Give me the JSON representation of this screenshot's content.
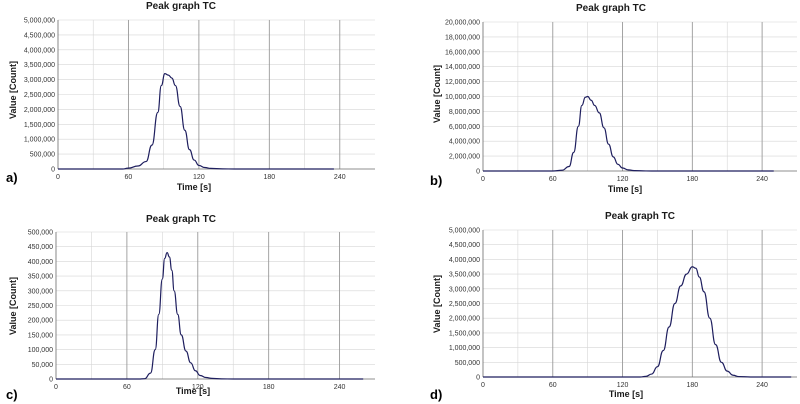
{
  "chart_data": [
    {
      "panel": "a)",
      "type": "line",
      "title": "Peak graph TC",
      "xlabel": "Time [s]",
      "ylabel": "Value [Count]",
      "xlim": [
        0,
        270
      ],
      "ylim": [
        0,
        5000000
      ],
      "xticks": [
        0,
        60,
        120,
        180,
        240
      ],
      "xtick_labels": [
        "0",
        "60",
        "120",
        "180",
        "240"
      ],
      "yticks": [
        0,
        500000,
        1000000,
        1500000,
        2000000,
        2500000,
        3000000,
        3500000,
        4000000,
        4500000,
        5000000
      ],
      "ytick_labels": [
        "0",
        "500,000",
        "1,000,000",
        "1,500,000",
        "2,000,000",
        "2,500,000",
        "3,000,000",
        "3,500,000",
        "4,000,000",
        "4,500,000",
        "5,000,000"
      ],
      "grid": true,
      "series": [
        {
          "x": [
            0,
            55,
            60,
            68,
            75,
            80,
            85,
            88,
            91,
            94,
            97,
            100,
            104,
            108,
            112,
            116,
            120,
            125,
            130,
            140,
            150,
            235
          ],
          "y": [
            0,
            0,
            30000,
            100000,
            250000,
            800000,
            1900000,
            2800000,
            3200000,
            3150000,
            3050000,
            2800000,
            2100000,
            1300000,
            650000,
            300000,
            120000,
            50000,
            20000,
            5000,
            0,
            0
          ]
        }
      ]
    },
    {
      "panel": "b)",
      "type": "line",
      "title": "Peak graph TC",
      "xlabel": "Time [s]",
      "ylabel": "Value [Count]",
      "xlim": [
        0,
        270
      ],
      "ylim": [
        0,
        20000000
      ],
      "xticks": [
        0,
        60,
        120,
        180,
        240
      ],
      "xtick_labels": [
        "0",
        "60",
        "120",
        "180",
        "240"
      ],
      "yticks": [
        0,
        2000000,
        4000000,
        6000000,
        8000000,
        10000000,
        12000000,
        14000000,
        16000000,
        18000000,
        20000000
      ],
      "ytick_labels": [
        "0",
        "2,000,000",
        "4,000,000",
        "6,000,000",
        "8,000,000",
        "10,000,000",
        "12,000,000",
        "14,000,000",
        "16,000,000",
        "18,000,000",
        "20,000,000"
      ],
      "grid": true,
      "series": [
        {
          "x": [
            0,
            60,
            68,
            74,
            78,
            82,
            85,
            88,
            90,
            93,
            96,
            100,
            104,
            108,
            112,
            116,
            120,
            125,
            130,
            140,
            150,
            250
          ],
          "y": [
            0,
            0,
            100000,
            600000,
            2500000,
            6000000,
            8800000,
            9900000,
            10000000,
            9500000,
            8800000,
            7800000,
            5800000,
            3600000,
            1900000,
            900000,
            400000,
            150000,
            50000,
            10000,
            0,
            0
          ]
        }
      ]
    },
    {
      "panel": "c)",
      "type": "line",
      "title": "Peak graph TC",
      "xlabel": "Time [s]",
      "ylabel": "Value [Count]",
      "xlim": [
        0,
        270
      ],
      "ylim": [
        0,
        500000
      ],
      "xticks": [
        0,
        60,
        120,
        180,
        240
      ],
      "xtick_labels": [
        "0",
        "60",
        "120",
        "180",
        "240"
      ],
      "yticks": [
        0,
        50000,
        100000,
        150000,
        200000,
        250000,
        300000,
        350000,
        400000,
        450000,
        500000
      ],
      "ytick_labels": [
        "0",
        "50,000",
        "100,000",
        "150,000",
        "200,000",
        "250,000",
        "300,000",
        "350,000",
        "400,000",
        "450,000",
        "500,000"
      ],
      "grid": true,
      "series": [
        {
          "x": [
            0,
            70,
            75,
            80,
            84,
            87,
            90,
            92,
            94,
            96,
            98,
            100,
            103,
            106,
            110,
            114,
            118,
            122,
            127,
            132,
            140,
            150,
            260
          ],
          "y": [
            0,
            0,
            1000,
            20000,
            100000,
            220000,
            340000,
            410000,
            430000,
            415000,
            370000,
            300000,
            220000,
            150000,
            95000,
            55000,
            28000,
            12000,
            5000,
            2000,
            500,
            0,
            0
          ]
        }
      ]
    },
    {
      "panel": "d)",
      "type": "line",
      "title": "Peak graph TC",
      "xlabel": "Time [s]",
      "ylabel": "Value [Count]",
      "xlim": [
        0,
        270
      ],
      "ylim": [
        0,
        5000000
      ],
      "xticks": [
        0,
        60,
        120,
        180,
        240
      ],
      "xtick_labels": [
        "0",
        "60",
        "120",
        "180",
        "240"
      ],
      "yticks": [
        0,
        500000,
        1000000,
        1500000,
        2000000,
        2500000,
        3000000,
        3500000,
        4000000,
        4500000,
        5000000
      ],
      "ytick_labels": [
        "0",
        "500,000",
        "1,000,000",
        "1,500,000",
        "2,000,000",
        "2,500,000",
        "3,000,000",
        "3,500,000",
        "4,000,000",
        "4,500,000",
        "5,000,000"
      ],
      "grid": true,
      "series": [
        {
          "x": [
            0,
            135,
            140,
            145,
            150,
            155,
            160,
            165,
            170,
            175,
            180,
            183,
            186,
            190,
            195,
            200,
            205,
            210,
            215,
            220,
            230,
            265
          ],
          "y": [
            0,
            0,
            20000,
            100000,
            350000,
            900000,
            1700000,
            2500000,
            3100000,
            3500000,
            3750000,
            3700000,
            3400000,
            2900000,
            2000000,
            1100000,
            500000,
            200000,
            60000,
            15000,
            0,
            0
          ]
        }
      ]
    }
  ]
}
